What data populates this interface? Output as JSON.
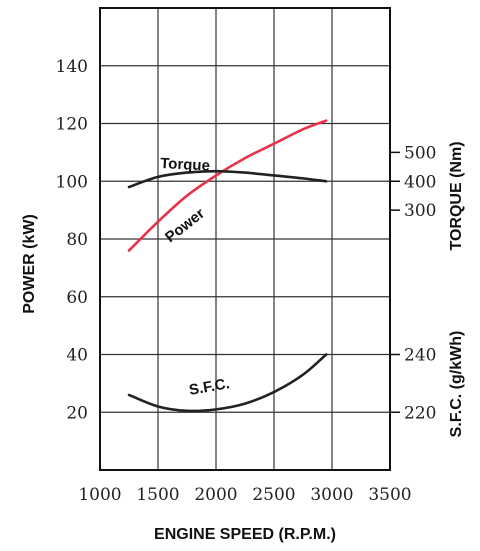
{
  "chart_data": {
    "type": "line",
    "xlabel": "ENGINE SPEED (R.P.M.)",
    "ylabel_left": "POWER (kW)",
    "ylabel_right_upper": "TORQUE (Nm)",
    "ylabel_right_lower": "S.F.C. (g/kWh)",
    "xlim": [
      1000,
      3500
    ],
    "ylim": [
      0,
      160
    ],
    "x_ticks": [
      1000,
      1500,
      2000,
      2500,
      3000,
      3500
    ],
    "y_ticks": [
      20,
      40,
      60,
      80,
      100,
      120,
      140
    ],
    "torque_ticks": [
      {
        "label": "500",
        "at": 110
      },
      {
        "label": "400",
        "at": 100
      },
      {
        "label": "300",
        "at": 90
      }
    ],
    "sfc_ticks": [
      {
        "label": "240",
        "at": 40
      },
      {
        "label": "220",
        "at": 20
      }
    ],
    "grid": true,
    "series": [
      {
        "name": "Power",
        "color": "#e8344a",
        "x": [
          1250,
          1500,
          1750,
          2000,
          2250,
          2500,
          2750,
          2950
        ],
        "y": [
          76,
          86,
          95,
          102,
          108,
          113,
          118,
          121
        ]
      },
      {
        "name": "Torque",
        "color": "#222222",
        "x": [
          1250,
          1500,
          1750,
          2000,
          2250,
          2500,
          2750,
          2950
        ],
        "y": [
          98,
          101.5,
          103,
          103.5,
          103,
          102,
          101,
          100
        ]
      },
      {
        "name": "S.F.C.",
        "color": "#222222",
        "x": [
          1250,
          1500,
          1750,
          2000,
          2250,
          2500,
          2750,
          2950
        ],
        "y": [
          26,
          22,
          20.5,
          21,
          23,
          27,
          33,
          40
        ]
      }
    ]
  }
}
